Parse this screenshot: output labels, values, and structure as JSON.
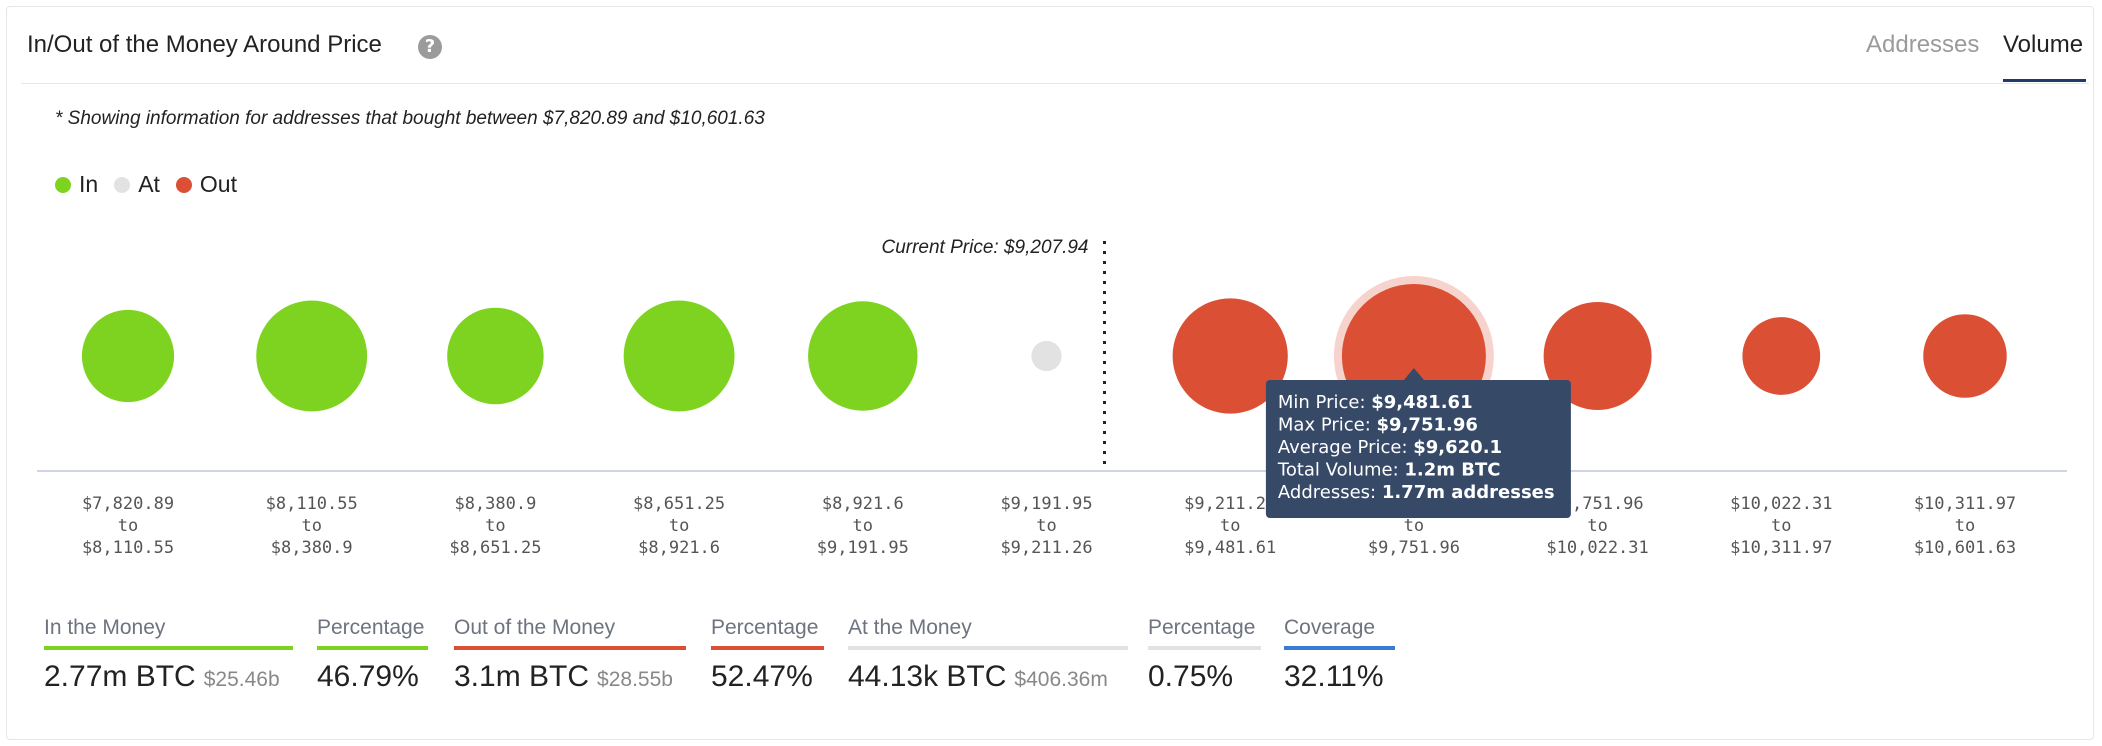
{
  "header": {
    "title": "In/Out of the Money Around Price",
    "help_icon": "?",
    "tabs": [
      {
        "label": "Addresses",
        "active": false
      },
      {
        "label": "Volume",
        "active": true
      }
    ]
  },
  "note": "* Showing information for addresses that bought between $7,820.89 and $10,601.63",
  "legend": [
    {
      "label": "In",
      "color": "#7ed321"
    },
    {
      "label": "At",
      "color": "#e2e2e2"
    },
    {
      "label": "Out",
      "color": "#db5034"
    }
  ],
  "current_price_label": "Current Price: $9,207.94",
  "chart_data": {
    "type": "scatter",
    "current_price": 9207.94,
    "bubble_scale": "relative bubble size (volume)",
    "clusters": [
      {
        "min": "$7,820.89",
        "to": "to",
        "max": "$8,110.55",
        "status": "in",
        "size": 0.64
      },
      {
        "min": "$8,110.55",
        "to": "to",
        "max": "$8,380.9",
        "status": "in",
        "size": 0.77
      },
      {
        "min": "$8,380.9",
        "to": "to",
        "max": "$8,651.25",
        "status": "in",
        "size": 0.67
      },
      {
        "min": "$8,651.25",
        "to": "to",
        "max": "$8,921.6",
        "status": "in",
        "size": 0.77
      },
      {
        "min": "$8,921.6",
        "to": "to",
        "max": "$9,191.95",
        "status": "in",
        "size": 0.76
      },
      {
        "min": "$9,191.95",
        "to": "to",
        "max": "$9,211.26",
        "status": "at",
        "size": 0.21
      },
      {
        "min": "$9,211.26",
        "to": "to",
        "max": "$9,481.61",
        "status": "out",
        "size": 0.8
      },
      {
        "min": "$9,481.61",
        "to": "to",
        "max": "$9,751.96",
        "status": "out",
        "size": 1.0,
        "highlighted": true
      },
      {
        "min": "$9,751.96",
        "to": "to",
        "max": "$10,022.31",
        "status": "out",
        "size": 0.75
      },
      {
        "min": "$10,022.31",
        "to": "to",
        "max": "$10,311.97",
        "status": "out",
        "size": 0.54
      },
      {
        "min": "$10,311.97",
        "to": "to",
        "max": "$10,601.63",
        "status": "out",
        "size": 0.58
      }
    ]
  },
  "tooltip": {
    "rows": [
      {
        "label": "Min Price:",
        "value": "$9,481.61"
      },
      {
        "label": "Max Price:",
        "value": "$9,751.96"
      },
      {
        "label": "Average Price:",
        "value": "$9,620.1"
      },
      {
        "label": "Total Volume:",
        "value": "1.2m BTC"
      },
      {
        "label": "Addresses:",
        "value": "1.77m addresses"
      }
    ]
  },
  "stats": [
    {
      "label": "In the Money",
      "value": "2.77m BTC",
      "sub": "$25.46b",
      "color": "#7ed321"
    },
    {
      "label": "Percentage",
      "value": "46.79%",
      "sub": "",
      "color": "#7ed321"
    },
    {
      "label": "Out of the Money",
      "value": "3.1m BTC",
      "sub": "$28.55b",
      "color": "#db5034"
    },
    {
      "label": "Percentage",
      "value": "52.47%",
      "sub": "",
      "color": "#db5034"
    },
    {
      "label": "At the Money",
      "value": "44.13k BTC",
      "sub": "$406.36m",
      "color": "#e2e2e2"
    },
    {
      "label": "Percentage",
      "value": "0.75%",
      "sub": "",
      "color": "#e2e2e2"
    },
    {
      "label": "Coverage",
      "value": "32.11%",
      "sub": "",
      "color": "#3a7bd5"
    }
  ]
}
